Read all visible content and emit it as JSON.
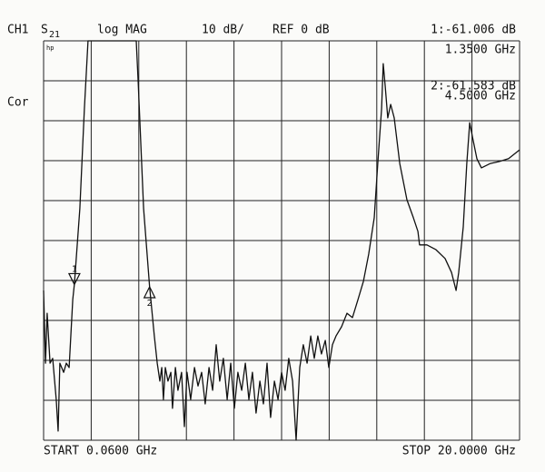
{
  "chart_data": {
    "type": "line",
    "channel": "CH1",
    "param": "S",
    "param_sub": "21",
    "format": "log MAG",
    "scale": "10 dB/",
    "reference": "REF 0 dB",
    "status": "Cor",
    "logo": "hp",
    "start": "START  0.0600 GHz",
    "stop": "STOP 20.0000 GHz",
    "readouts": [
      "1:-61.006 dB",
      "1.3500 GHz",
      "2:-61.583 dB",
      "4.5000 GHz"
    ],
    "markers": [
      {
        "label": "1",
        "x": 1.35,
        "y": -61.006
      },
      {
        "label": "2",
        "x": 4.5,
        "y": -61.583
      }
    ],
    "xlim": [
      0.06,
      20
    ],
    "ylim": [
      -100,
      0
    ],
    "xticks": [
      0.06,
      2.054,
      4.048,
      6.042,
      8.036,
      10.03,
      12.024,
      14.018,
      16.012,
      18.006,
      20
    ],
    "yticks": [
      0,
      -10,
      -20,
      -30,
      -40,
      -50,
      -60,
      -70,
      -80,
      -90,
      -100
    ],
    "grid": true,
    "color": "#111111",
    "x": [
      0.06,
      0.14,
      0.21,
      0.33,
      0.44,
      0.59,
      0.67,
      0.74,
      0.9,
      1.01,
      1.13,
      1.28,
      1.35,
      1.58,
      1.77,
      1.92,
      3.94,
      4.02,
      4.25,
      4.5,
      4.7,
      4.82,
      4.93,
      5.01,
      5.08,
      5.16,
      5.27,
      5.39,
      5.46,
      5.58,
      5.69,
      5.84,
      5.96,
      6.07,
      6.22,
      6.38,
      6.53,
      6.68,
      6.83,
      6.99,
      7.14,
      7.29,
      7.44,
      7.59,
      7.75,
      7.9,
      8.05,
      8.2,
      8.36,
      8.51,
      8.66,
      8.81,
      8.96,
      9.12,
      9.27,
      9.42,
      9.57,
      9.73,
      9.88,
      10.03,
      10.18,
      10.33,
      10.49,
      10.64,
      10.79,
      10.94,
      11.1,
      11.25,
      11.4,
      11.55,
      11.7,
      11.86,
      12.01,
      12.16,
      12.31,
      12.54,
      12.77,
      13.0,
      13.23,
      13.46,
      13.68,
      13.91,
      14.06,
      14.22,
      14.29,
      14.37,
      14.48,
      14.6,
      14.75,
      14.98,
      15.28,
      15.55,
      15.74,
      15.81,
      16.12,
      16.5,
      16.88,
      17.15,
      17.34,
      17.45,
      17.64,
      17.79,
      17.91,
      18.02,
      18.21,
      18.4,
      18.78,
      19.16,
      19.54,
      20.0
    ],
    "values": [
      -62.5,
      -80.7,
      -68.2,
      -80.7,
      -79.5,
      -89.8,
      -97.7,
      -80.7,
      -83.0,
      -80.7,
      -81.8,
      -64.8,
      -60.9,
      -42.0,
      -17.0,
      0,
      0,
      -10.2,
      -42.0,
      -61.6,
      -73.9,
      -80.7,
      -85.2,
      -81.8,
      -89.8,
      -81.8,
      -85.2,
      -83.0,
      -92.0,
      -81.8,
      -87.5,
      -83.0,
      -96.6,
      -83.0,
      -89.8,
      -81.8,
      -86.4,
      -83.0,
      -90.9,
      -81.8,
      -87.5,
      -76.1,
      -85.2,
      -79.5,
      -89.8,
      -80.7,
      -92.0,
      -83.0,
      -87.5,
      -80.7,
      -89.8,
      -83.0,
      -93.2,
      -85.2,
      -90.9,
      -80.7,
      -94.3,
      -85.2,
      -89.8,
      -83.0,
      -87.5,
      -79.5,
      -85.2,
      -100,
      -81.8,
      -76.1,
      -80.7,
      -73.9,
      -79.5,
      -73.9,
      -78.4,
      -75.0,
      -81.8,
      -76.1,
      -73.9,
      -71.6,
      -68.2,
      -69.3,
      -64.8,
      -60.2,
      -53.4,
      -44.3,
      -30.7,
      -17.0,
      -5.7,
      -11.4,
      -19.3,
      -15.9,
      -19.3,
      -30.7,
      -39.8,
      -44.3,
      -47.7,
      -51.1,
      -51.1,
      -52.3,
      -54.5,
      -58.0,
      -62.5,
      -58.0,
      -46.6,
      -30.7,
      -20.5,
      -23.9,
      -29.5,
      -31.8,
      -30.7,
      -30.2,
      -29.5,
      -27.3
    ]
  }
}
